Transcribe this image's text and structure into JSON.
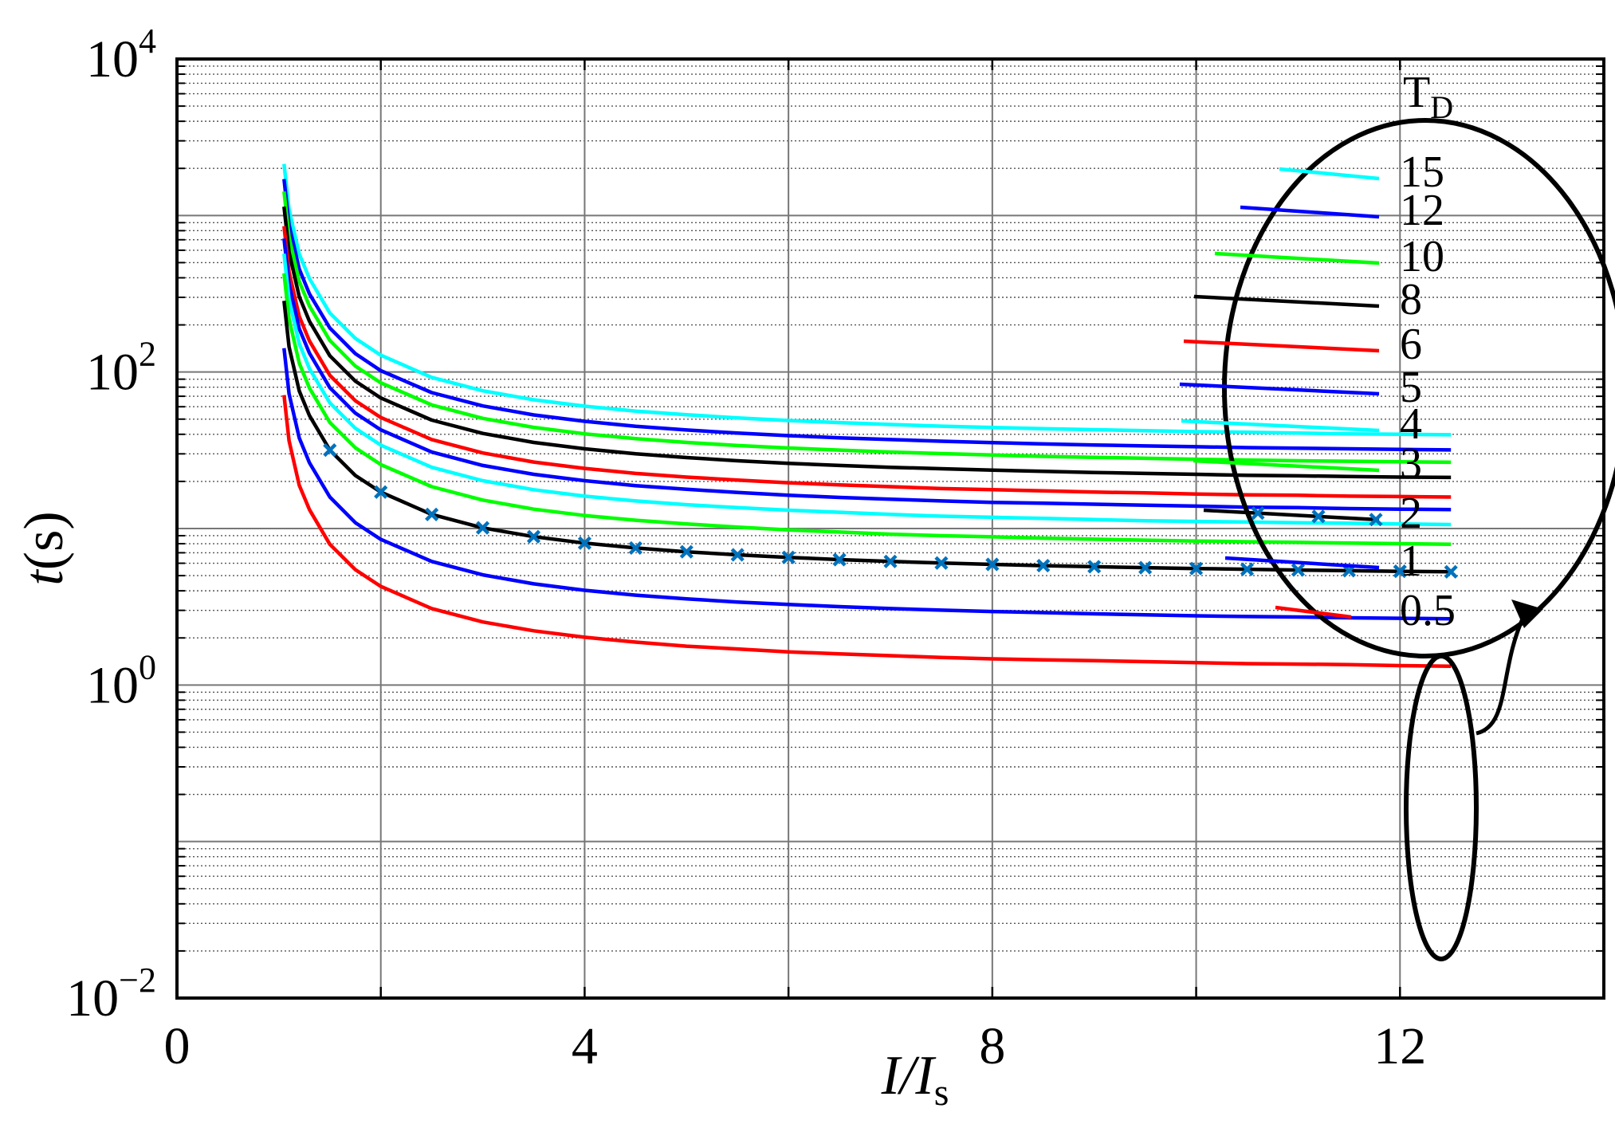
{
  "chart_data": {
    "type": "line",
    "x_scale": "linear",
    "y_scale": "log",
    "xlim": [
      0,
      14
    ],
    "ylim": [
      0.01,
      10000
    ],
    "xticks": [
      "0",
      "4",
      "8",
      "12"
    ],
    "yticks": [
      {
        "base": "10",
        "exp": "−2",
        "value": 0.01
      },
      {
        "base": "10",
        "exp": "0",
        "value": 1
      },
      {
        "base": "10",
        "exp": "2",
        "value": 100
      },
      {
        "base": "10",
        "exp": "4",
        "value": 10000
      }
    ],
    "xlabel": {
      "main": "I/I",
      "sub": "s"
    },
    "ylabel": {
      "main": "t",
      "rest": "(s)"
    },
    "grid": true,
    "legend_title": {
      "main": "T",
      "sub": "D"
    },
    "legend_placement": "top-right (inside ellipse)",
    "x": [
      1.05,
      1.1,
      1.2,
      1.3,
      1.5,
      1.75,
      2,
      2.5,
      3,
      3.5,
      4,
      4.5,
      5,
      5.5,
      6,
      6.5,
      7,
      7.5,
      8,
      8.5,
      9,
      9.5,
      10,
      10.5,
      11,
      11.5,
      12,
      12.5
    ],
    "series": [
      {
        "name": "15",
        "TD": 15,
        "color": "#00FFFF",
        "values": [
          2136,
          1091,
          568,
          395,
          238,
          164,
          128,
          92.4,
          75.9,
          66.5,
          60.5,
          56.3,
          53.3,
          50.9,
          49.0,
          47.5,
          46.2,
          45.1,
          44.2,
          43.4,
          42.8,
          42.2,
          41.6,
          41.2,
          40.7,
          40.3,
          40.0,
          39.7
        ]
      },
      {
        "name": "12",
        "TD": 12,
        "color": "#0000FF",
        "values": [
          1709,
          873,
          455,
          316,
          191,
          131,
          102,
          73.9,
          60.7,
          53.2,
          48.4,
          45.0,
          42.6,
          40.7,
          39.2,
          38.0,
          37.0,
          36.1,
          35.4,
          34.7,
          34.2,
          33.7,
          33.3,
          32.9,
          32.6,
          32.3,
          32.0,
          31.8
        ]
      },
      {
        "name": "10",
        "TD": 10,
        "color": "#00FF00",
        "values": [
          1424,
          727,
          379,
          264,
          159,
          109,
          85.3,
          61.6,
          50.6,
          44.3,
          40.3,
          37.5,
          35.5,
          33.9,
          32.7,
          31.7,
          30.8,
          30.1,
          29.5,
          28.9,
          28.5,
          28.1,
          27.7,
          27.4,
          27.1,
          26.9,
          26.7,
          26.5
        ]
      },
      {
        "name": "8",
        "TD": 8,
        "color": "#000000",
        "values": [
          1139,
          582,
          303,
          211,
          127,
          87.4,
          68.3,
          49.3,
          40.5,
          35.5,
          32.3,
          30.0,
          28.4,
          27.1,
          26.1,
          25.3,
          24.6,
          24.1,
          23.6,
          23.2,
          22.8,
          22.5,
          22.2,
          21.9,
          21.7,
          21.5,
          21.3,
          21.2
        ]
      },
      {
        "name": "6",
        "TD": 6,
        "color": "#FF0000",
        "values": [
          854,
          436,
          227,
          158,
          95.2,
          65.5,
          51.2,
          37.0,
          30.4,
          26.6,
          24.2,
          22.5,
          21.3,
          20.4,
          19.6,
          19.0,
          18.5,
          18.0,
          17.7,
          17.4,
          17.1,
          16.9,
          16.6,
          16.4,
          16.3,
          16.1,
          16.0,
          15.9
        ]
      },
      {
        "name": "5",
        "TD": 5,
        "color": "#0000FF",
        "values": [
          712,
          364,
          189,
          132,
          79.3,
          54.6,
          42.7,
          30.8,
          25.3,
          22.2,
          20.2,
          18.8,
          17.8,
          17.0,
          16.3,
          15.8,
          15.4,
          15.0,
          14.7,
          14.5,
          14.3,
          14.1,
          13.9,
          13.7,
          13.6,
          13.4,
          13.3,
          13.2
        ]
      },
      {
        "name": "4",
        "TD": 4,
        "color": "#00FFFF",
        "values": [
          570,
          291,
          152,
          105,
          63.5,
          43.7,
          34.1,
          24.6,
          20.2,
          17.7,
          16.1,
          15.0,
          14.2,
          13.6,
          13.1,
          12.7,
          12.3,
          12.0,
          11.8,
          11.6,
          11.4,
          11.2,
          11.1,
          11.0,
          10.9,
          10.8,
          10.7,
          10.6
        ]
      },
      {
        "name": "3",
        "TD": 3,
        "color": "#00FF00",
        "values": [
          427,
          218,
          114,
          79.0,
          47.6,
          32.8,
          25.6,
          18.5,
          15.2,
          13.3,
          12.1,
          11.3,
          10.7,
          10.2,
          9.8,
          9.5,
          9.2,
          9.0,
          8.85,
          8.68,
          8.55,
          8.43,
          8.32,
          8.23,
          8.15,
          8.07,
          8.0,
          7.94
        ]
      },
      {
        "name": "2",
        "TD": 2,
        "color": "#000000",
        "markers": true,
        "marker_color": "#0072BD",
        "values": [
          285,
          145,
          75.7,
          52.7,
          31.7,
          21.8,
          17.1,
          12.3,
          10.1,
          8.87,
          8.07,
          7.51,
          7.1,
          6.79,
          6.54,
          6.33,
          6.16,
          6.02,
          5.9,
          5.79,
          5.7,
          5.62,
          5.55,
          5.49,
          5.43,
          5.38,
          5.33,
          5.29
        ]
      },
      {
        "name": "1",
        "TD": 1,
        "color": "#0000FF",
        "values": [
          142,
          72.7,
          37.9,
          26.3,
          15.9,
          10.9,
          8.53,
          6.16,
          5.06,
          4.43,
          4.03,
          3.75,
          3.55,
          3.39,
          3.27,
          3.17,
          3.08,
          3.01,
          2.95,
          2.9,
          2.85,
          2.81,
          2.77,
          2.74,
          2.72,
          2.69,
          2.67,
          2.65
        ]
      },
      {
        "name": "0.5",
        "TD": 0.5,
        "color": "#FF0000",
        "values": [
          71.2,
          36.4,
          18.9,
          13.2,
          7.93,
          5.46,
          4.27,
          3.08,
          2.53,
          2.22,
          2.02,
          1.88,
          1.77,
          1.7,
          1.63,
          1.58,
          1.54,
          1.5,
          1.47,
          1.45,
          1.43,
          1.41,
          1.39,
          1.37,
          1.36,
          1.35,
          1.33,
          1.32
        ]
      }
    ]
  }
}
